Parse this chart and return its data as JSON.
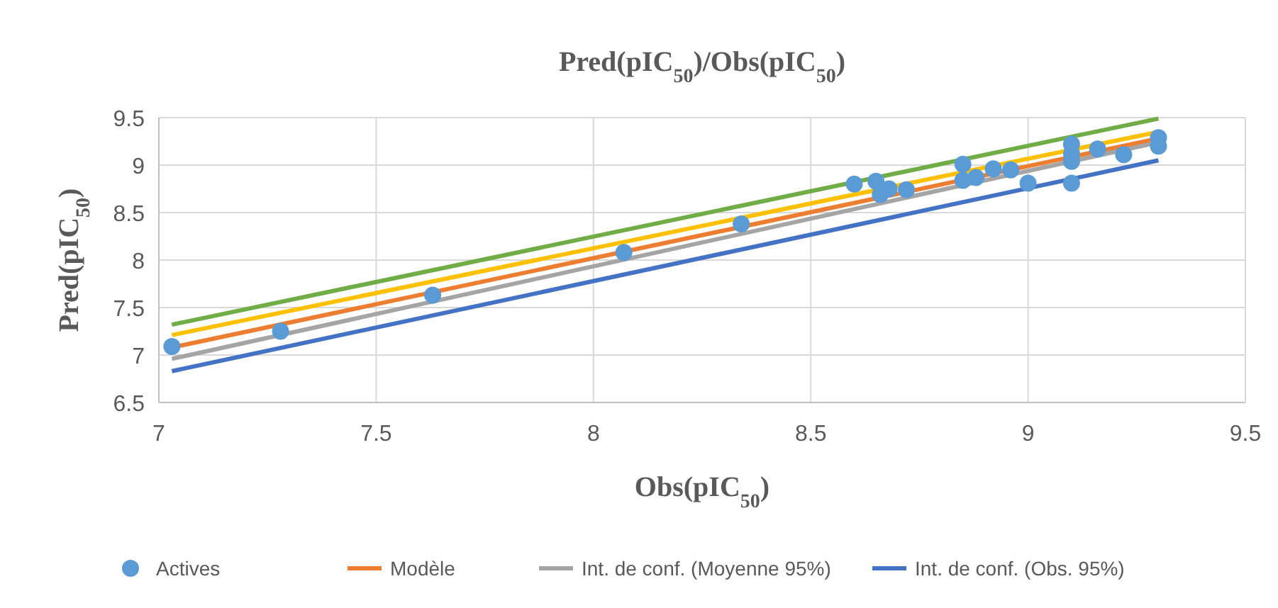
{
  "chart_data": {
    "type": "scatter",
    "title": "Pred(pIC$_{50}$)/Obs(pIC$_{50}$)",
    "xlabel": "Obs(pIC$_{50}$)",
    "ylabel": "Pred(pIC$_{50}$)",
    "xlim": [
      7,
      9.5
    ],
    "xticks": [
      7,
      7.5,
      8,
      8.5,
      9,
      9.5
    ],
    "ylim": [
      6.5,
      9.5
    ],
    "yticks": [
      6.5,
      7,
      7.5,
      8,
      8.5,
      9,
      9.5
    ],
    "grid": true,
    "legend": "bottom",
    "series": [
      {
        "name": "Actives",
        "marker": "circle",
        "color": "#5b9bd5",
        "x": [
          7.03,
          7.28,
          7.63,
          8.07,
          8.34,
          8.6,
          8.65,
          8.66,
          8.68,
          8.72,
          8.85,
          8.85,
          8.88,
          8.92,
          8.96,
          9.0,
          9.1,
          9.1,
          9.1,
          9.1,
          9.16,
          9.22,
          9.3,
          9.3
        ],
        "values": [
          7.09,
          7.25,
          7.63,
          8.08,
          8.38,
          8.8,
          8.83,
          8.69,
          8.75,
          8.74,
          9.01,
          8.84,
          8.87,
          8.96,
          8.95,
          8.81,
          9.22,
          9.12,
          9.04,
          8.81,
          9.17,
          9.11,
          9.29,
          9.2
        ]
      },
      {
        "name": "Modèle",
        "type": "line",
        "color": "#ed7d31",
        "x": [
          7.03,
          9.3
        ],
        "values": [
          7.08,
          9.28
        ]
      },
      {
        "name": "Int. de conf. (Moyenne 95%)",
        "type": "line",
        "color": "#a5a5a5",
        "x": [
          7.03,
          9.3
        ],
        "values": [
          6.96,
          9.24
        ]
      },
      {
        "name": "Int. de conf. (Obs. 95%)",
        "type": "line",
        "color": "#4472c4",
        "x": [
          7.03,
          9.3
        ],
        "values": [
          6.83,
          9.05
        ]
      },
      {
        "type": "line",
        "color": "#ffc000",
        "x": [
          7.03,
          9.3
        ],
        "values": [
          7.21,
          9.35
        ]
      },
      {
        "type": "line",
        "color": "#70ad47",
        "x": [
          7.03,
          9.3
        ],
        "values": [
          7.32,
          9.49
        ]
      }
    ]
  }
}
